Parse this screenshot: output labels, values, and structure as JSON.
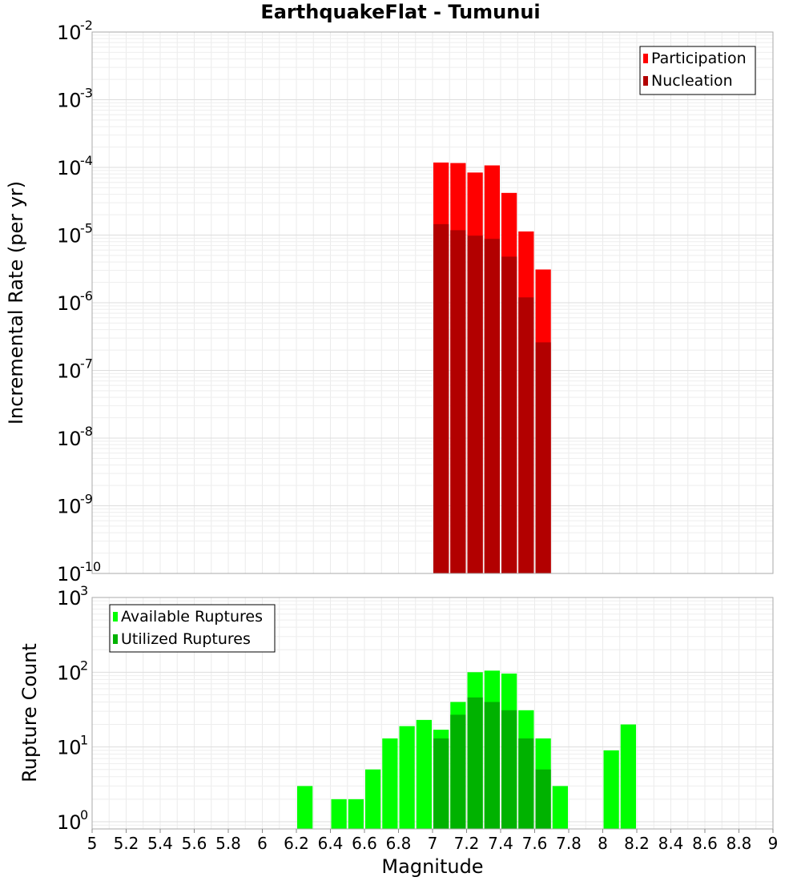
{
  "title": "EarthquakeFlat - Tumunui",
  "chart_data": [
    {
      "type": "bar",
      "id": "rate-panel",
      "ylabel": "Incremental Rate (per yr)",
      "yscale": "log",
      "ylim": [
        1e-10,
        0.01
      ],
      "y_tick_exponents": [
        "-2",
        "-3",
        "-4",
        "-5",
        "-6",
        "-7",
        "-8",
        "-9",
        "-10"
      ],
      "y_tick_base": "10",
      "bin_width": 0.1,
      "legend": {
        "placement": "top-right"
      },
      "series": [
        {
          "name": "Participation",
          "color": "#ff0000",
          "x": [
            7.05,
            7.15,
            7.25,
            7.35,
            7.45,
            7.55,
            7.65
          ],
          "values": [
            0.000118,
            0.000116,
            8.4e-05,
            0.000107,
            4.2e-05,
            1.13e-05,
            3.1e-06
          ]
        },
        {
          "name": "Nucleation",
          "color": "#b20000",
          "x": [
            7.05,
            7.15,
            7.25,
            7.35,
            7.45,
            7.55,
            7.65
          ],
          "values": [
            1.45e-05,
            1.18e-05,
            9.8e-06,
            8.8e-06,
            4.8e-06,
            1.2e-06,
            2.6e-07
          ]
        }
      ]
    },
    {
      "type": "bar",
      "id": "count-panel",
      "ylabel": "Rupture Count",
      "xlabel": "Magnitude",
      "yscale": "log",
      "ylim": [
        0.8,
        1000
      ],
      "y_tick_exponents": [
        "3",
        "2",
        "1",
        "0"
      ],
      "y_tick_base": "10",
      "xlim": [
        5,
        9
      ],
      "x_ticks": [
        "5",
        "5.2",
        "5.4",
        "5.6",
        "5.8",
        "6",
        "6.2",
        "6.4",
        "6.6",
        "6.8",
        "7",
        "7.2",
        "7.4",
        "7.6",
        "7.8",
        "8",
        "8.2",
        "8.4",
        "8.6",
        "8.8",
        "9"
      ],
      "bin_width": 0.1,
      "legend": {
        "placement": "top-left"
      },
      "series": [
        {
          "name": "Available Ruptures",
          "color": "#00ff00",
          "x": [
            6.25,
            6.45,
            6.55,
            6.65,
            6.75,
            6.85,
            6.95,
            7.05,
            7.15,
            7.25,
            7.35,
            7.45,
            7.55,
            7.65,
            7.75,
            8.05,
            8.15
          ],
          "values": [
            3,
            2,
            2,
            5,
            13,
            19,
            23,
            17,
            40,
            100,
            105,
            96,
            31,
            13,
            3,
            9,
            20
          ]
        },
        {
          "name": "Utilized Ruptures",
          "color": "#00b200",
          "x": [
            7.05,
            7.15,
            7.25,
            7.35,
            7.45,
            7.55,
            7.65
          ],
          "values": [
            13,
            27,
            46,
            40,
            31,
            13,
            5
          ]
        }
      ]
    }
  ]
}
